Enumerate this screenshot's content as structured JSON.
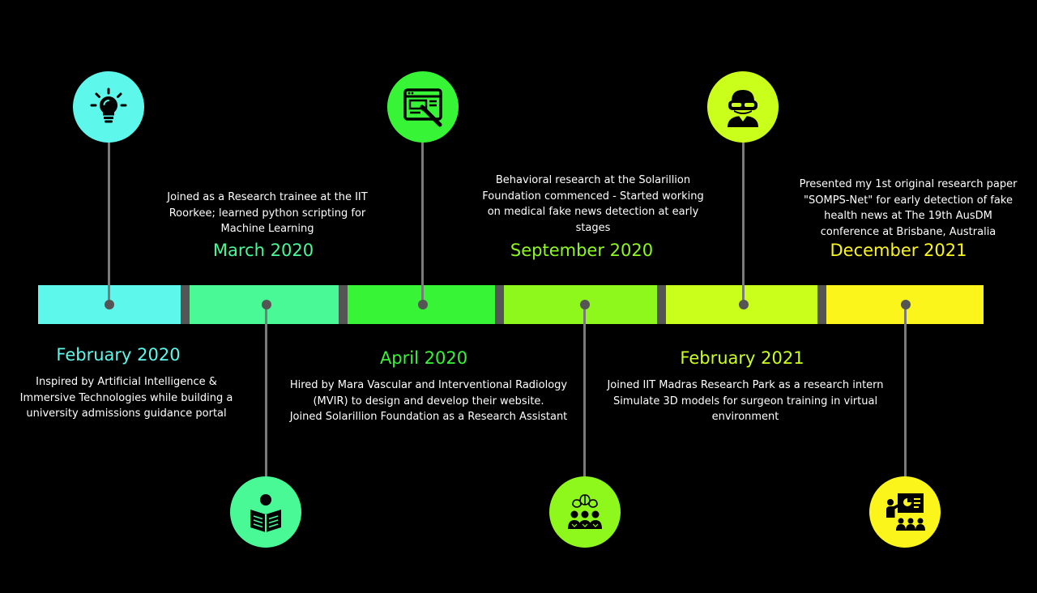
{
  "colors": {
    "background": "#000000",
    "separator": "#555555",
    "stem": "#7a7a7a",
    "segments": [
      "#5ef7ec",
      "#48f996",
      "#37f437",
      "#8ef81c",
      "#cafe1b",
      "#fbf51c"
    ]
  },
  "milestones": [
    {
      "date": "February 2020",
      "date_color": "#5ef7ec",
      "icon": "lightbulb-icon",
      "icon_bg": "#5ef7ec",
      "lines": [
        "Inspired by Artificial Intelligence &",
        "Immersive Technologies while building a",
        "university admissions guidance portal"
      ]
    },
    {
      "date": "March 2020",
      "date_color": "#48f996",
      "icon": "reading-person-icon",
      "icon_bg": "#48f996",
      "lines": [
        "Joined as a Research trainee at the IIT",
        "Roorkee; learned python scripting for",
        "Machine Learning"
      ]
    },
    {
      "date": "April 2020",
      "date_color": "#37f437",
      "icon": "web-design-icon",
      "icon_bg": "#37f437",
      "lines": [
        "Hired by Mara Vascular and Interventional Radiology",
        "(MVIR) to design and develop their website.",
        "Joined Solarillion Foundation as a Research Assistant"
      ]
    },
    {
      "date": "September 2020",
      "date_color": "#8ef81c",
      "icon": "team-brain-icon",
      "icon_bg": "#8ef81c",
      "lines": [
        "Behavioral research at the Solarillion",
        "Foundation commenced - Started working",
        "on medical fake news detection at early",
        "stages"
      ]
    },
    {
      "date": "February 2021",
      "date_color": "#cafe1b",
      "icon": "vr-headset-icon",
      "icon_bg": "#cafe1b",
      "lines": [
        "Joined IIT Madras Research Park as a research intern",
        "Simulate 3D models for surgeon training in virtual",
        "environment"
      ]
    },
    {
      "date": "December 2021",
      "date_color": "#fbf51c",
      "icon": "presentation-icon",
      "icon_bg": "#fbf51c",
      "lines": [
        "Presented my 1st original research paper",
        "\"SOMPS-Net\" for early detection of fake",
        "health news at The 19th AusDM",
        "conference at Brisbane, Australia"
      ]
    }
  ]
}
